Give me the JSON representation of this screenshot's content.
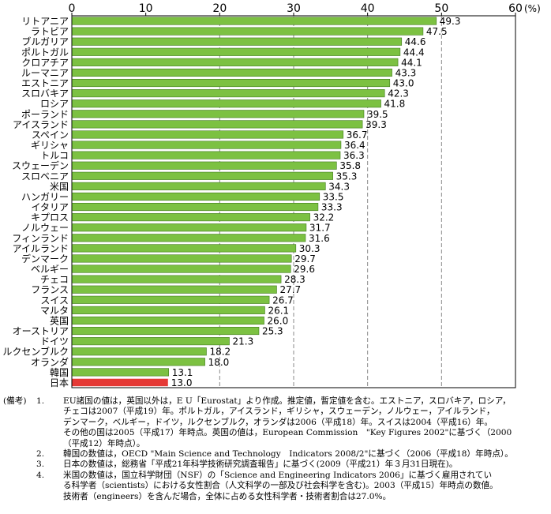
{
  "chart_data": {
    "type": "bar",
    "orientation": "horizontal",
    "x_ticks": [
      "0",
      "10",
      "20",
      "30",
      "40",
      "50",
      "60"
    ],
    "x_unit": "(%)",
    "xlim": [
      0,
      60
    ],
    "grid": "dashed vertical at 20, 30, 40, 50",
    "categories": [
      "リトアニア",
      "ラトビア",
      "ブルガリア",
      "ポルトガル",
      "クロアチア",
      "ルーマニア",
      "エストニア",
      "スロバキア",
      "ロシア",
      "ポーランド",
      "アイスランド",
      "スペイン",
      "ギリシャ",
      "トルコ",
      "スウェーデン",
      "スロベニア",
      "米国",
      "ハンガリー",
      "イタリア",
      "キプロス",
      "ノルウェー",
      "フィンランド",
      "アイルランド",
      "デンマーク",
      "ベルギー",
      "チェコ",
      "フランス",
      "スイス",
      "マルタ",
      "英国",
      "オーストリア",
      "ドイツ",
      "ルクセンブルク",
      "オランダ",
      "韓国",
      "日本"
    ],
    "values": [
      49.3,
      47.5,
      44.6,
      44.4,
      44.1,
      43.3,
      43.0,
      42.3,
      41.8,
      39.5,
      39.3,
      36.7,
      36.4,
      36.3,
      35.8,
      35.3,
      34.3,
      33.5,
      33.3,
      32.2,
      31.7,
      31.6,
      30.3,
      29.7,
      29.6,
      28.3,
      27.7,
      26.7,
      26.1,
      26.0,
      25.3,
      21.3,
      18.2,
      18.0,
      13.1,
      13.0
    ],
    "value_labels": [
      "49.3",
      "47.5",
      "44.6",
      "44.4",
      "44.1",
      "43.3",
      "43.0",
      "42.3",
      "41.8",
      "39.5",
      "39.3",
      "36.7",
      "36.4",
      "36.3",
      "35.8",
      "35.3",
      "34.3",
      "33.5",
      "33.3",
      "32.2",
      "31.7",
      "31.6",
      "30.3",
      "29.7",
      "29.6",
      "28.3",
      "27.7",
      "26.7",
      "26.1",
      "26.0",
      "25.3",
      "21.3",
      "18.2",
      "18.0",
      "13.1",
      "13.0"
    ],
    "highlight": [
      "日本"
    ],
    "colors": {
      "bar": "#7cc142",
      "highlight": "#e53935",
      "bar_edge": "#ffffff",
      "grid": "#888888"
    }
  },
  "notes": {
    "label": "(備考)",
    "items": [
      {
        "num": "1.",
        "text": "EU諸国の値は，英国以外は，E U「Eurostat」より作成。推定値，暫定値を含む。エストニア，スロバキア，ロシア，\nチェコは2007（平成19）年。ポルトガル，アイスランド，ギリシャ，スウェーデン，ノルウェー，アイルランド，\nデンマーク，ベルギー，ドイツ，ルクセンブルク，オランダは2006（平成18）年。スイスは2004（平成16）年。\nその他の国は2005（平成17）年時点。英国の値は，European Commission　\"Key Figures 2002\"に基づく（2000\n（平成12）年時点）。"
      },
      {
        "num": "2.",
        "text": "韓国の数値は，OECD \"Main Science and Technology　Indicators 2008/2\"に基づく（2006（平成18）年時点）。"
      },
      {
        "num": "3.",
        "text": "日本の数値は，総務省「平成21年科学技術研究調査報告」に基づく(2009（平成21）年３月31日現在)。"
      },
      {
        "num": "4.",
        "text": "米国の数値は，国立科学財団（NSF）の「Science and Engineering Indicators 2006」に基づく雇用されてい\nる科学者（scientists）における女性割合（人文科学の一部及び社会科学を含む)。2003（平成15）年時点の数値。\n技術者（engineers）を含んだ場合，全体に占める女性科学者・技術者割合は27.0%。"
      }
    ]
  }
}
